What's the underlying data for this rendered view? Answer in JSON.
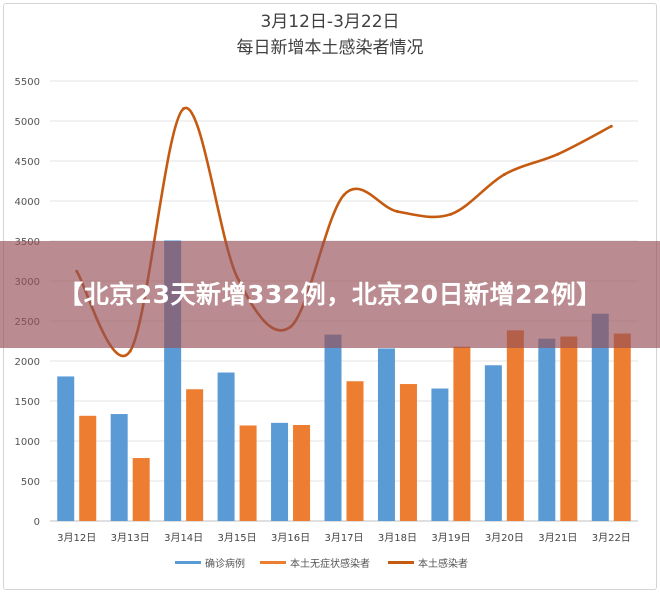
{
  "overlay": {
    "headline": "【北京23天新增332例，北京20日新增22例】"
  },
  "chart_data": {
    "type": "bar",
    "title": "3月12日-3月22日",
    "subtitle": "每日新增本土感染者情况",
    "categories": [
      "3月12日",
      "3月13日",
      "3月14日",
      "3月15日",
      "3月16日",
      "3月17日",
      "3月18日",
      "3月19日",
      "3月20日",
      "3月21日",
      "3月22日"
    ],
    "series": [
      {
        "name": "确诊病例",
        "type": "bar",
        "color": "#5b9bd5",
        "values": [
          1807,
          1337,
          3507,
          1856,
          1227,
          2330,
          2157,
          1656,
          1947,
          2279,
          2591
        ]
      },
      {
        "name": "本土无症状感染者",
        "type": "bar",
        "color": "#ed7d31",
        "values": [
          1315,
          787,
          1647,
          1194,
          1200,
          1747,
          1712,
          2179,
          2384,
          2306,
          2343
        ]
      },
      {
        "name": "本土感染者",
        "type": "line",
        "color": "#c55a11",
        "values": [
          3122,
          2124,
          5154,
          3050,
          2427,
          4077,
          3869,
          3835,
          4331,
          4585,
          4934
        ]
      }
    ],
    "yticks": [
      "0",
      "500",
      "1000",
      "1500",
      "2000",
      "2500",
      "3000",
      "3500",
      "4000",
      "4500",
      "5000",
      "5500"
    ],
    "ylim": [
      0,
      5500
    ],
    "grid": true,
    "legend_position": "bottom"
  }
}
